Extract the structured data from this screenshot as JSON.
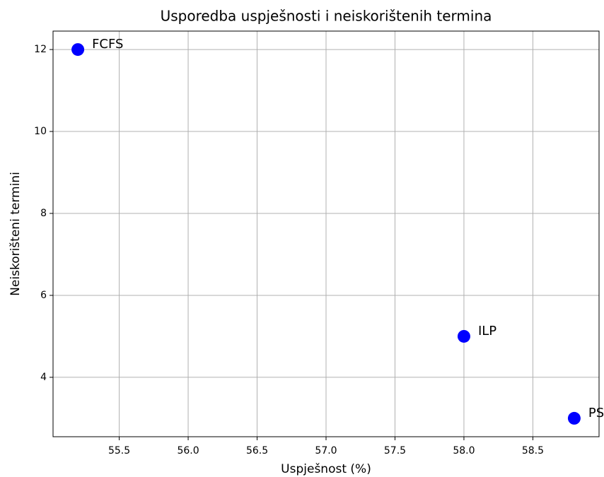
{
  "chart_data": {
    "type": "scatter",
    "title": "Usporedba uspješnosti i neiskorištenih termina",
    "xlabel": "Uspješnost (%)",
    "ylabel": "Neiskorišteni termini",
    "series": [
      {
        "color": "#0000ff",
        "x": [
          55.2,
          58.0,
          58.8
        ],
        "values": [
          12,
          5,
          3
        ],
        "labels": [
          "FCFS",
          "ILP",
          "PS"
        ]
      }
    ],
    "xlim": [
      55.02,
      58.98
    ],
    "ylim": [
      2.55,
      12.45
    ],
    "xticks": [
      55.5,
      {
        "value": 56.0,
        "label": "56.0"
      },
      56.5,
      {
        "value": 57.0,
        "label": "57.0"
      },
      57.5,
      {
        "value": 58.0,
        "label": "58.0"
      },
      58.5
    ],
    "yticks": [
      4,
      6,
      8,
      10,
      12
    ],
    "grid": true
  }
}
